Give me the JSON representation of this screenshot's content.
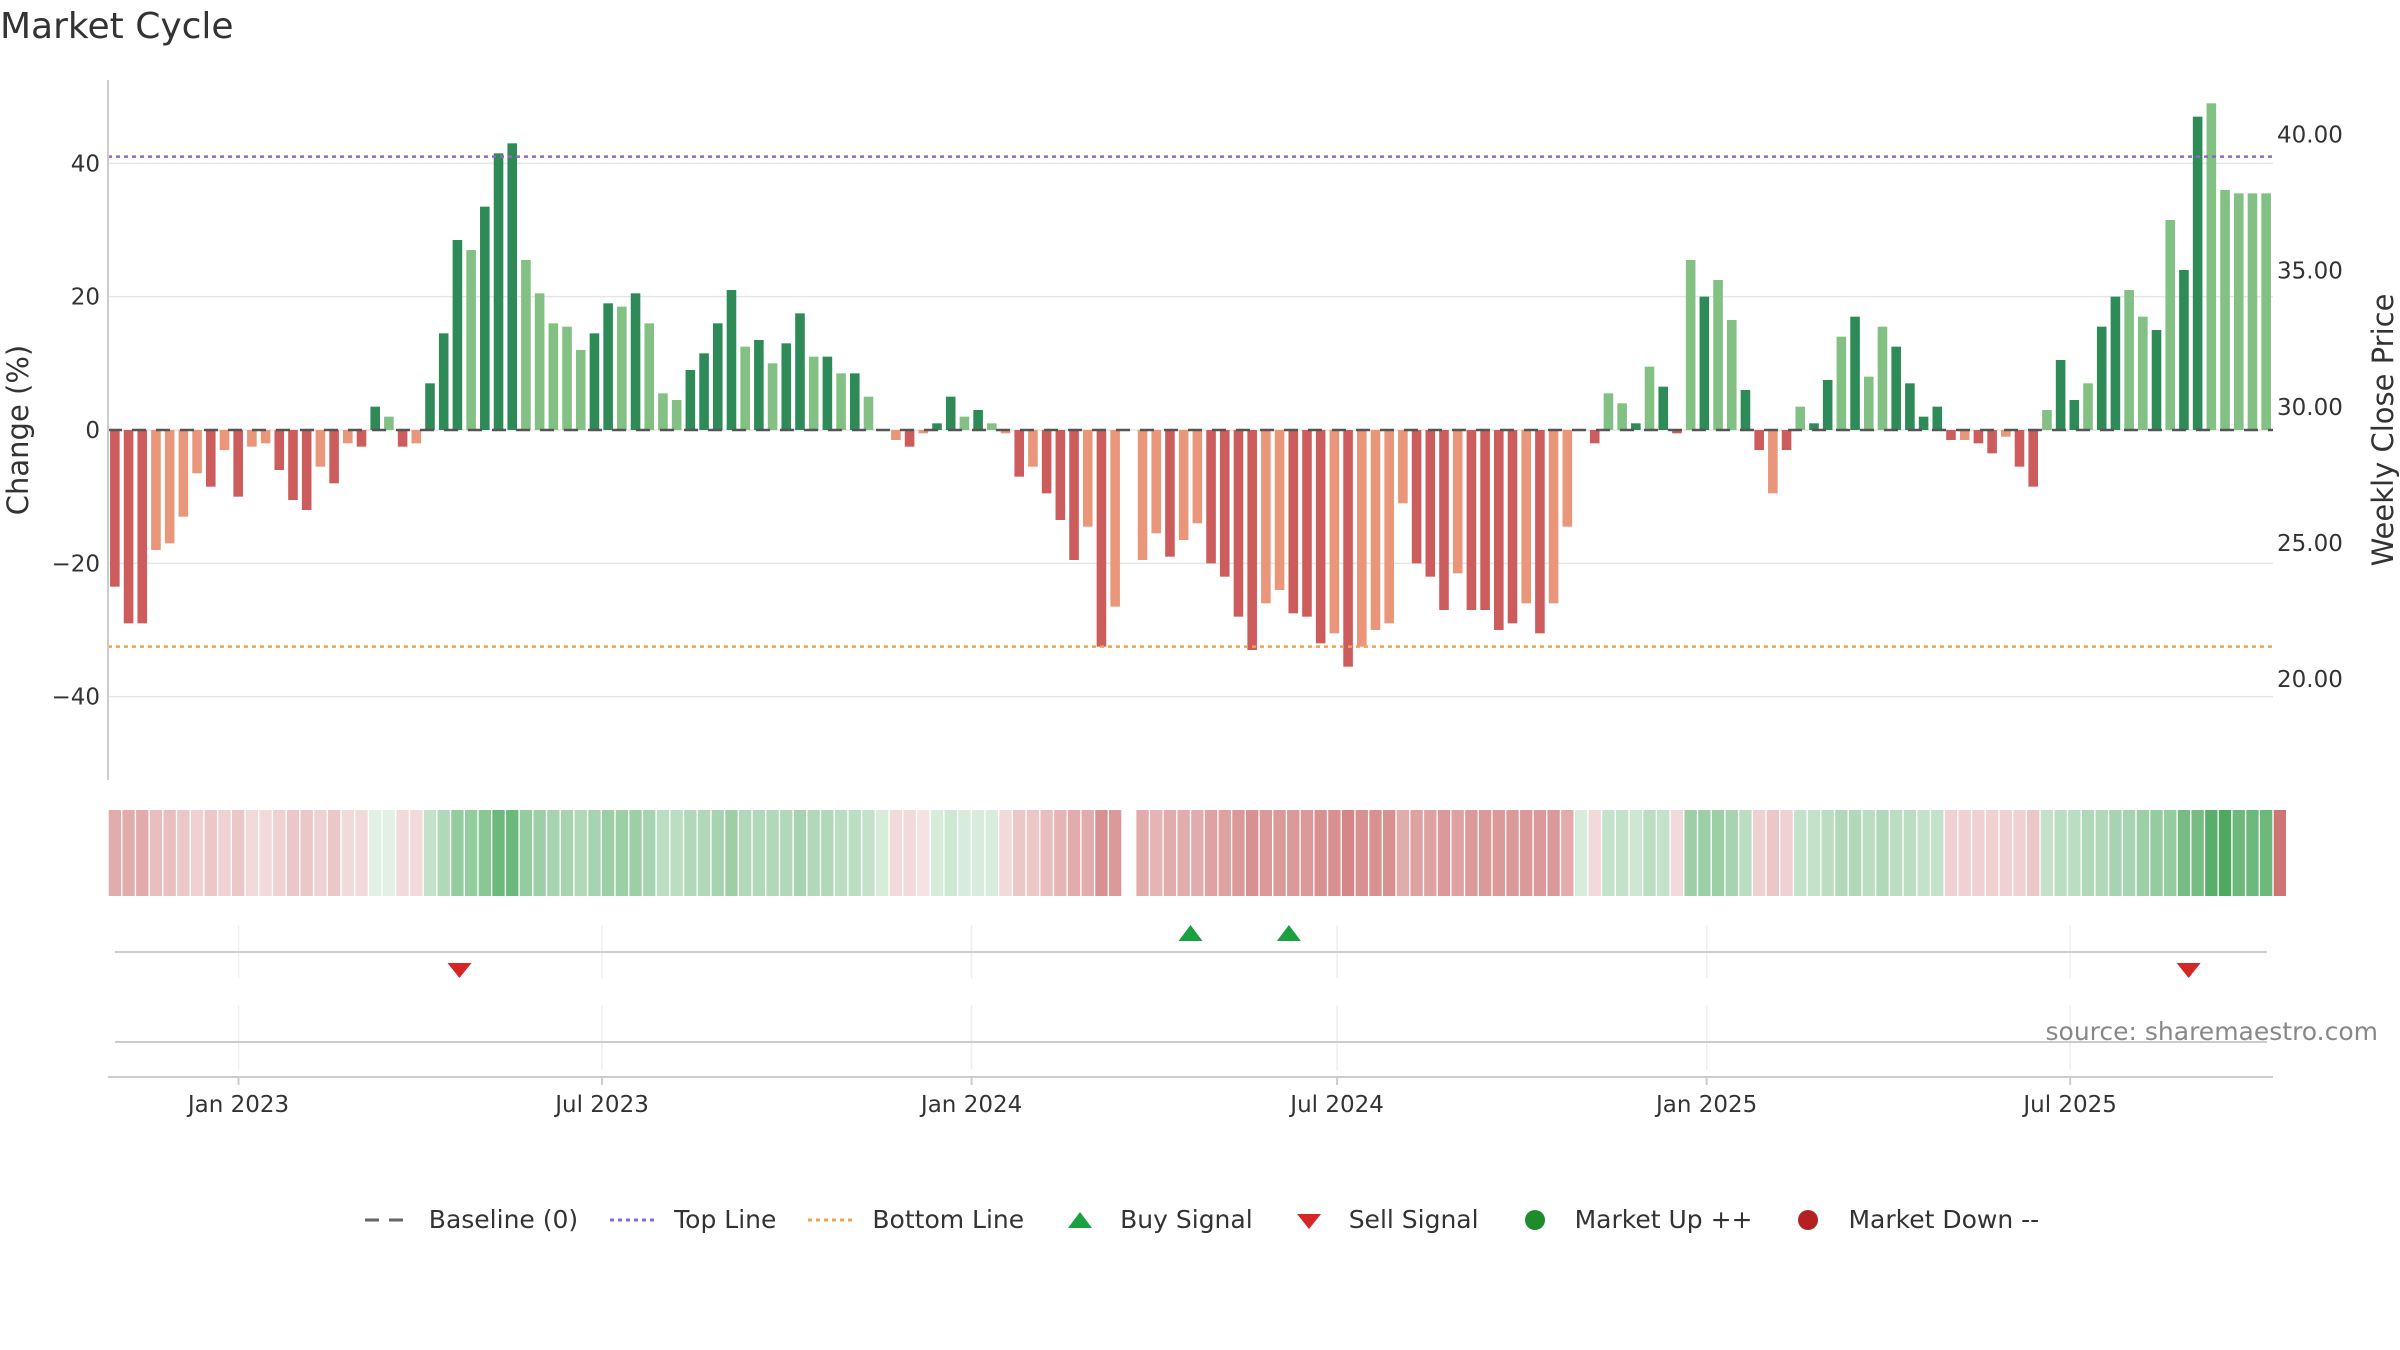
{
  "title": "Market Cycle",
  "source_text": "source: sharemaestro.com",
  "legend": [
    {
      "key": "baseline",
      "label": "Baseline (0)",
      "icon": "dash-line",
      "color": "#666666"
    },
    {
      "key": "top",
      "label": "Top Line",
      "icon": "dotted-line",
      "color": "#9467bd"
    },
    {
      "key": "bottom",
      "label": "Bottom Line",
      "icon": "dotted-line",
      "color": "#f0a050"
    },
    {
      "key": "buy",
      "label": "Buy Signal",
      "icon": "triangle-up",
      "color": "#1aa040"
    },
    {
      "key": "sell",
      "label": "Sell Signal",
      "icon": "triangle-down",
      "color": "#d62728"
    },
    {
      "key": "up",
      "label": "Market Up ++",
      "icon": "circle",
      "color": "#1e8c2a"
    },
    {
      "key": "down",
      "label": "Market Down --",
      "icon": "circle",
      "color": "#b22222"
    }
  ],
  "chart_data": {
    "type": "bar",
    "title": "Market Cycle",
    "ylabel": "Change (%)",
    "y2label": "Weekly Close Price",
    "ylim": [
      -52.5,
      52.5
    ],
    "yticks": [
      -40,
      -20,
      0,
      20,
      40
    ],
    "y2ticks": [
      "20.00",
      "25.00",
      "30.00",
      "35.00",
      "40.00"
    ],
    "y2ticks_values": [
      20,
      25,
      30,
      35,
      40
    ],
    "y2lim": [
      16.3,
      42.0
    ],
    "x_ticks": [
      "Jan 2023",
      "Jul 2023",
      "Jan 2024",
      "Jul 2024",
      "Jan 2025",
      "Jul 2025"
    ],
    "x_tick_dates": [
      "2023-01-01",
      "2023-07-01",
      "2024-01-01",
      "2024-07-01",
      "2025-01-01",
      "2025-07-01"
    ],
    "x_start": "2022-10-28",
    "x_end": "2025-10-10",
    "top_line": 41,
    "bottom_line": -32.5,
    "baseline": 0,
    "grid": true,
    "colors": {
      "pos_strong": "#2e8b57",
      "pos_light": "#82c083",
      "neg_strong": "#cd5c5c",
      "neg_light": "#e9967a",
      "top": "#9467bd",
      "bottom": "#f0a050",
      "buy": "#1aa040",
      "sell": "#d62728"
    },
    "series": [
      {
        "values": [
          -23.5,
          -29,
          -29,
          -18,
          -17,
          -13,
          -6.5,
          -8.5,
          -3,
          -10,
          -2.5,
          -2,
          -6,
          -10.5,
          -12,
          -5.5,
          -8,
          -2,
          -2.5,
          3.5,
          2,
          -2.5,
          -2,
          7,
          14.5,
          28.5,
          27,
          33.5,
          41.5,
          43,
          25.5,
          20.5,
          16,
          15.5,
          12,
          14.5,
          19,
          18.5,
          20.5,
          16,
          5.5,
          4.5,
          9,
          11.5,
          16,
          21,
          12.5,
          13.5,
          10,
          13,
          17.5,
          11,
          11,
          8.5,
          8.5,
          5,
          0,
          -1.5,
          -2.5,
          -0.5,
          1,
          5,
          2,
          3,
          1,
          -0.5,
          -7,
          -5.5,
          -9.5,
          -13.5,
          -19.5,
          -14.5,
          -32.5,
          -26.5,
          0,
          -19.5,
          -15.5,
          -19,
          -16.5,
          -14,
          -20,
          -22,
          -28,
          -33,
          -26,
          -24,
          -27.5,
          -28,
          -32,
          -30.5,
          -35.5,
          -32.5,
          -30,
          -29,
          -11,
          -20,
          -22,
          -27,
          -21.5,
          -27,
          -27,
          -30,
          -29,
          -26,
          -30.5,
          -26,
          -14.5,
          0,
          -2,
          5.5,
          4,
          1,
          9.5,
          6.5,
          -0.5,
          25.5,
          20,
          22.5,
          16.5,
          6,
          -3,
          -9.5,
          -3,
          3.5,
          1,
          7.5,
          14,
          17,
          8,
          15.5,
          12.5,
          7,
          2,
          3.5,
          -1.5,
          -1.5,
          -2,
          -3.5,
          -1,
          -5.5,
          -8.5,
          3,
          10.5,
          4.5,
          7,
          15.5,
          20,
          21,
          17,
          15,
          31.5,
          24,
          47,
          49,
          36,
          35.5,
          35.5,
          35.5
        ],
        "styles": [
          1,
          1,
          1,
          0,
          0,
          0,
          0,
          1,
          0,
          1,
          0,
          0,
          1,
          1,
          1,
          0,
          1,
          0,
          1,
          1,
          0,
          1,
          0,
          1,
          1,
          1,
          0,
          1,
          1,
          1,
          0,
          0,
          0,
          0,
          0,
          1,
          1,
          0,
          1,
          0,
          0,
          0,
          1,
          1,
          1,
          1,
          0,
          1,
          0,
          1,
          1,
          0,
          1,
          0,
          1,
          0,
          1,
          0,
          1,
          0,
          1,
          1,
          0,
          1,
          0,
          0,
          1,
          0,
          1,
          1,
          1,
          0,
          1,
          0,
          1,
          0,
          0,
          1,
          0,
          0,
          1,
          1,
          1,
          1,
          0,
          0,
          1,
          1,
          1,
          0,
          1,
          0,
          0,
          0,
          0,
          1,
          1,
          1,
          0,
          1,
          1,
          1,
          1,
          0,
          1,
          0,
          0,
          1,
          1,
          0,
          0,
          1,
          0,
          1,
          1,
          0,
          1,
          0,
          0,
          1,
          1,
          0,
          1,
          0,
          1,
          1,
          0,
          1,
          0,
          0,
          1,
          1,
          1,
          1,
          1,
          0,
          1,
          1,
          0,
          1,
          1,
          0,
          1,
          1,
          0,
          1,
          1,
          0,
          0,
          1,
          0,
          1,
          1,
          0,
          0,
          0,
          0
        ]
      }
    ],
    "heat_strip": [
      0.45,
      0.45,
      0.45,
      0.35,
      0.35,
      0.3,
      0.25,
      0.3,
      0.25,
      0.3,
      0.2,
      0.2,
      0.25,
      0.3,
      0.3,
      0.25,
      0.3,
      0.2,
      0.2,
      0.15,
      0.15,
      0.2,
      0.2,
      0.3,
      0.4,
      0.55,
      0.55,
      0.6,
      0.75,
      0.75,
      0.55,
      0.5,
      0.45,
      0.45,
      0.4,
      0.45,
      0.5,
      0.5,
      0.5,
      0.45,
      0.35,
      0.35,
      0.4,
      0.4,
      0.45,
      0.5,
      0.4,
      0.4,
      0.4,
      0.4,
      0.45,
      0.4,
      0.4,
      0.35,
      0.35,
      0.3,
      0.2,
      0.2,
      0.2,
      0.15,
      0.2,
      0.25,
      0.2,
      0.2,
      0.2,
      0.2,
      0.3,
      0.3,
      0.35,
      0.4,
      0.45,
      0.45,
      0.6,
      0.55,
      0,
      0.45,
      0.4,
      0.45,
      0.45,
      0.45,
      0.5,
      0.5,
      0.55,
      0.6,
      0.55,
      0.55,
      0.55,
      0.55,
      0.6,
      0.6,
      0.65,
      0.6,
      0.6,
      0.6,
      0.45,
      0.5,
      0.5,
      0.55,
      0.5,
      0.55,
      0.55,
      0.55,
      0.55,
      0.55,
      0.55,
      0.55,
      0.45,
      0.2,
      0.2,
      0.3,
      0.3,
      0.25,
      0.35,
      0.3,
      0.2,
      0.5,
      0.5,
      0.5,
      0.45,
      0.35,
      0.25,
      0.3,
      0.25,
      0.3,
      0.3,
      0.35,
      0.4,
      0.4,
      0.35,
      0.4,
      0.35,
      0.35,
      0.3,
      0.3,
      0.25,
      0.25,
      0.25,
      0.25,
      0.25,
      0.25,
      0.3,
      0.3,
      0.35,
      0.35,
      0.4,
      0.4,
      0.45,
      0.45,
      0.5,
      0.55,
      0.55,
      0.7,
      0.7,
      0.85,
      0.9,
      0.75,
      0.75,
      0.75,
      0.75
    ],
    "buy_signals": [
      "2024-04-19",
      "2024-06-07"
    ],
    "sell_signals": [
      "2023-04-21",
      "2025-08-29"
    ]
  }
}
